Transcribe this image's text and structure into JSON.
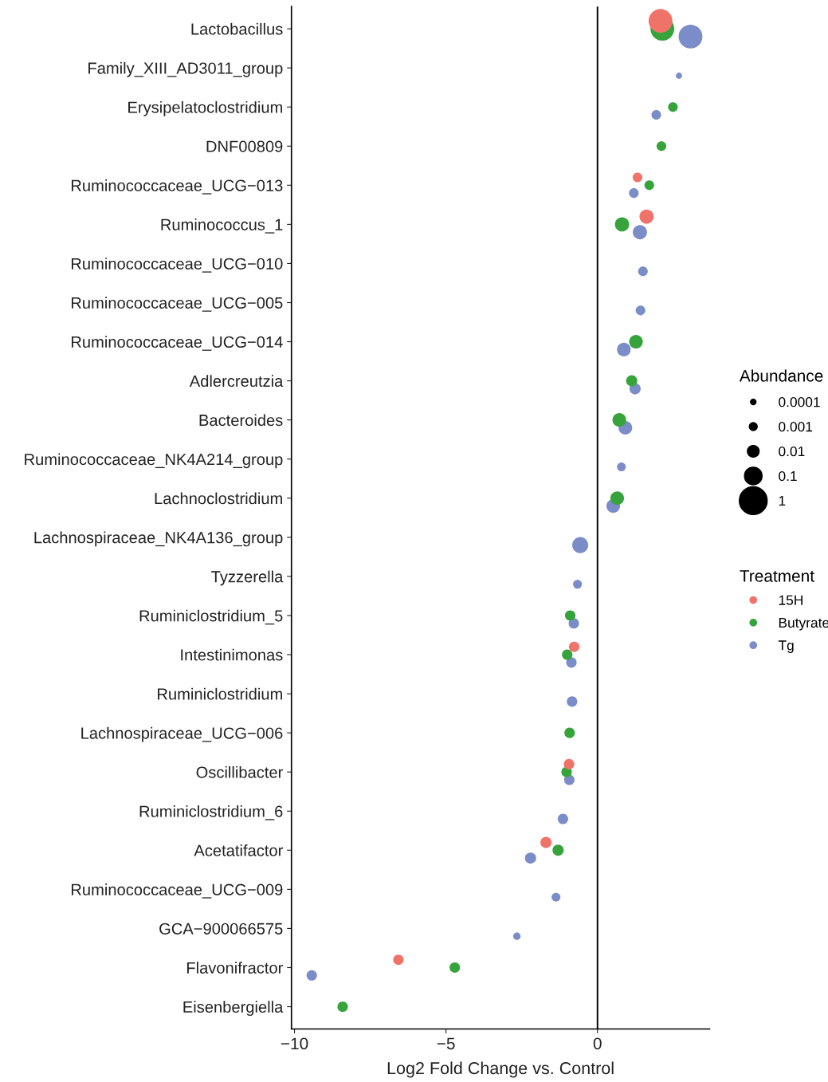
{
  "chart_data": {
    "type": "bubble",
    "orientation": "horizontal",
    "xlabel": "Log2 Fold Change vs. Control",
    "legend_title": "Treatment",
    "annotations": [
      "Abundance"
    ],
    "categories": [
      "Lactobacillus",
      "Family_XIII_AD3011_group",
      "Erysipelatoclostridium",
      "DNF00809",
      "Ruminococcaceae_UCG−013",
      "Ruminococcus_1",
      "Ruminococcaceae_UCG−010",
      "Ruminococcaceae_UCG−005",
      "Ruminococcaceae_UCG−014",
      "Adlercreutzia",
      "Bacteroides",
      "Ruminococcaceae_NK4A214_group",
      "Lachnoclostridium",
      "Lachnospiraceae_NK4A136_group",
      "Tyzzerella",
      "Ruminiclostridium_5",
      "Intestinimonas",
      "Ruminiclostridium",
      "Lachnospiraceae_UCG−006",
      "Oscillibacter",
      "Ruminiclostridium_6",
      "Acetatifactor",
      "Ruminococcaceae_UCG−009",
      "GCA−900066575",
      "Flavonifractor",
      "Eisenbergiella"
    ],
    "series": [
      {
        "name": "15H",
        "color": "#f0736a",
        "values": [
          2.08,
          null,
          null,
          null,
          1.32,
          1.62,
          null,
          null,
          null,
          null,
          null,
          null,
          null,
          null,
          null,
          null,
          -0.77,
          null,
          null,
          -0.94,
          null,
          -1.7,
          null,
          null,
          -6.57,
          null
        ],
        "sizes": [
          0.73,
          null,
          null,
          null,
          0.12,
          0.26,
          null,
          null,
          null,
          null,
          null,
          null,
          null,
          null,
          null,
          null,
          0.14,
          null,
          null,
          0.14,
          null,
          0.16,
          null,
          null,
          0.14,
          null
        ]
      },
      {
        "name": "Butyrate",
        "color": "#37a33b",
        "values": [
          2.14,
          null,
          2.49,
          2.11,
          1.71,
          0.81,
          null,
          null,
          1.27,
          1.13,
          0.72,
          null,
          0.65,
          null,
          null,
          -0.9,
          -1.0,
          null,
          -0.92,
          -1.02,
          null,
          -1.3,
          null,
          null,
          -4.71,
          -8.41
        ],
        "sizes": [
          0.73,
          null,
          0.12,
          0.12,
          0.12,
          0.26,
          null,
          null,
          0.24,
          0.16,
          0.24,
          null,
          0.24,
          null,
          null,
          0.14,
          0.14,
          null,
          0.14,
          0.14,
          null,
          0.16,
          null,
          null,
          0.14,
          0.14
        ]
      },
      {
        "name": "Tg",
        "color": "#7b8dc8",
        "values": [
          3.07,
          2.69,
          1.94,
          null,
          1.2,
          1.4,
          1.5,
          1.42,
          0.87,
          1.24,
          0.92,
          0.79,
          0.52,
          -0.57,
          -0.66,
          -0.78,
          -0.86,
          -0.84,
          null,
          -0.93,
          -1.14,
          -2.21,
          -1.37,
          -2.66,
          -9.43,
          null
        ],
        "sizes": [
          0.73,
          0.05,
          0.12,
          null,
          0.12,
          0.26,
          0.12,
          0.12,
          0.24,
          0.16,
          0.24,
          0.1,
          0.24,
          0.33,
          0.1,
          0.14,
          0.14,
          0.14,
          null,
          0.14,
          0.14,
          0.16,
          0.1,
          0.07,
          0.14,
          null
        ]
      }
    ],
    "size_legend": [
      {
        "value": 0.04,
        "label": "0.0001"
      },
      {
        "value": 0.082,
        "label": "0.001"
      },
      {
        "value": 0.18,
        "label": "0.01"
      },
      {
        "value": 0.4,
        "label": "0.1"
      },
      {
        "value": 1,
        "label": "1"
      }
    ],
    "xlim": [
      -10.1,
      3.7
    ],
    "xticks": [
      {
        "value": -10,
        "label": "−10"
      },
      {
        "value": -5,
        "label": "−5"
      },
      0
    ],
    "ref_lines": [
      {
        "axis": "x",
        "value": 0,
        "color": "#000000"
      }
    ],
    "grid": false,
    "legend": "right"
  }
}
